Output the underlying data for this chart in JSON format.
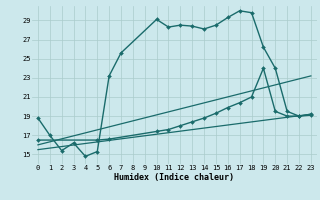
{
  "xlabel": "Humidex (Indice chaleur)",
  "bg_color": "#cce8ec",
  "line_color": "#1a6b6b",
  "grid_color": "#aacccc",
  "xlim": [
    -0.5,
    23.5
  ],
  "ylim": [
    14.0,
    30.5
  ],
  "yticks": [
    15,
    17,
    19,
    21,
    23,
    25,
    27,
    29
  ],
  "xticks": [
    0,
    1,
    2,
    3,
    4,
    5,
    6,
    7,
    8,
    9,
    10,
    11,
    12,
    13,
    14,
    15,
    16,
    17,
    18,
    19,
    20,
    21,
    22,
    23
  ],
  "series": [
    {
      "x": [
        0,
        1,
        2,
        3,
        4,
        5,
        6,
        7,
        10,
        11,
        12,
        13,
        14,
        15,
        16,
        17,
        18,
        19,
        20,
        21,
        22,
        23
      ],
      "y": [
        18.8,
        17.0,
        15.4,
        16.2,
        14.8,
        15.3,
        23.2,
        25.6,
        29.1,
        28.3,
        28.5,
        28.4,
        28.1,
        28.5,
        29.3,
        30.0,
        29.8,
        26.2,
        24.0,
        19.5,
        19.0,
        19.2
      ],
      "marker": "D",
      "markersize": 2.0,
      "linewidth": 1.0
    },
    {
      "x": [
        0,
        5,
        6,
        10,
        11,
        12,
        13,
        14,
        15,
        16,
        17,
        18,
        19,
        20,
        21,
        22,
        23
      ],
      "y": [
        16.5,
        16.5,
        16.6,
        17.4,
        17.6,
        18.0,
        18.4,
        18.8,
        19.3,
        19.9,
        20.4,
        21.0,
        24.0,
        19.5,
        19.0,
        19.0,
        19.1
      ],
      "marker": "D",
      "markersize": 2.0,
      "linewidth": 1.0
    },
    {
      "x": [
        0,
        23
      ],
      "y": [
        16.0,
        23.2
      ],
      "marker": null,
      "linewidth": 0.9
    },
    {
      "x": [
        0,
        23
      ],
      "y": [
        15.5,
        19.2
      ],
      "marker": null,
      "linewidth": 0.9
    }
  ]
}
